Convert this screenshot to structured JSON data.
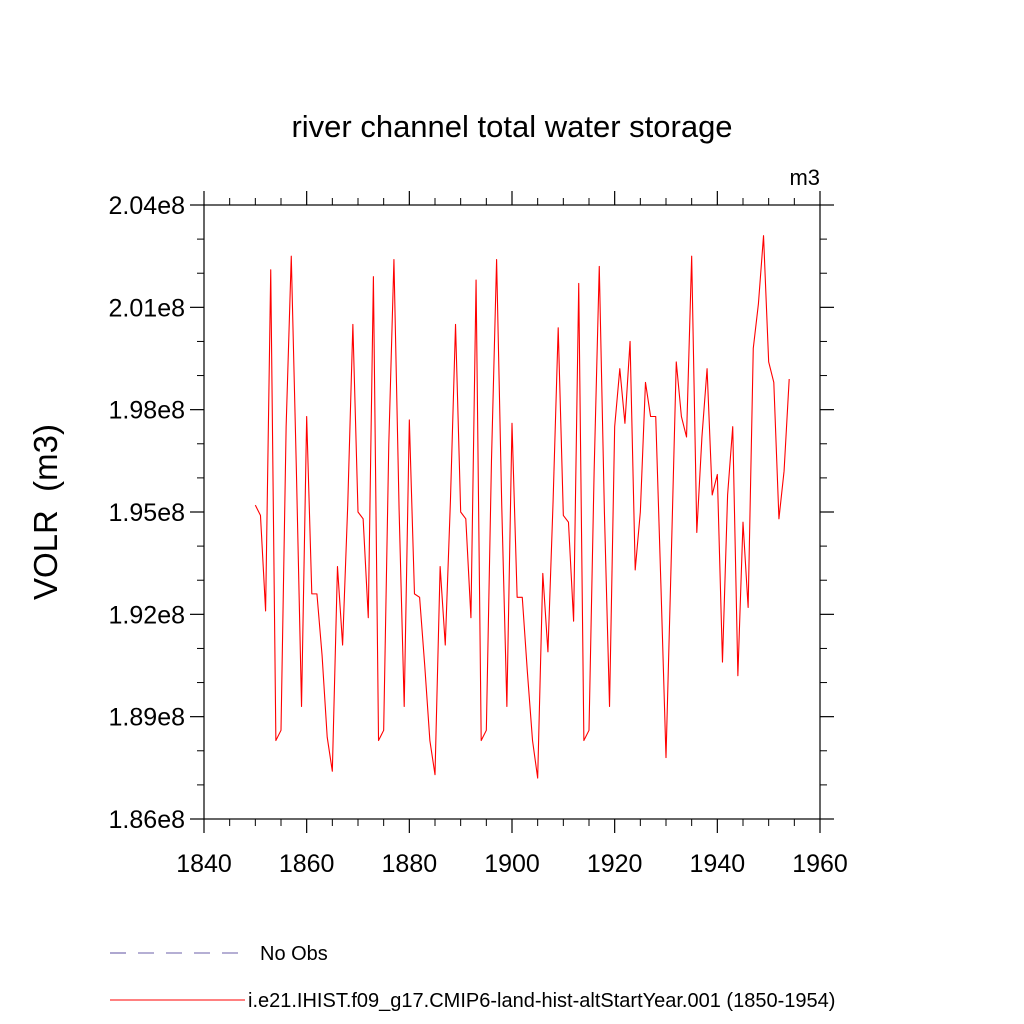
{
  "chart_data": {
    "type": "line",
    "title": "river channel total water storage",
    "units_label": "m3",
    "ylabel": "VOLR  (m3)",
    "xlabel": "",
    "xlim": [
      1840,
      1960
    ],
    "ylim": [
      186000000.0,
      204000000.0
    ],
    "x_ticks": [
      1840,
      1860,
      1880,
      1900,
      1920,
      1940,
      1960
    ],
    "x_tick_labels": [
      "1840",
      "1860",
      "1880",
      "1900",
      "1920",
      "1940",
      "1960"
    ],
    "y_ticks": [
      186000000.0,
      189000000.0,
      192000000.0,
      195000000.0,
      198000000.0,
      201000000.0,
      204000000.0
    ],
    "y_tick_labels": [
      "1.86e8",
      "1.89e8",
      "1.92e8",
      "1.95e8",
      "1.98e8",
      "2.01e8",
      "2.04e8"
    ],
    "grid": false,
    "legend_position": "bottom",
    "series": [
      {
        "name": "i.e21.IHIST.f09_g17.CMIP6-land-hist-altStartYear.001 (1850-1954)",
        "color": "#ff0000",
        "style": "solid",
        "x": [
          1850,
          1851,
          1852,
          1853,
          1854,
          1855,
          1856,
          1857,
          1858,
          1859,
          1860,
          1861,
          1862,
          1863,
          1864,
          1865,
          1866,
          1867,
          1868,
          1869,
          1870,
          1871,
          1872,
          1873,
          1874,
          1875,
          1876,
          1877,
          1878,
          1879,
          1880,
          1881,
          1882,
          1883,
          1884,
          1885,
          1886,
          1887,
          1888,
          1889,
          1890,
          1891,
          1892,
          1893,
          1894,
          1895,
          1896,
          1897,
          1898,
          1899,
          1900,
          1901,
          1902,
          1903,
          1904,
          1905,
          1906,
          1907,
          1908,
          1909,
          1910,
          1911,
          1912,
          1913,
          1914,
          1915,
          1916,
          1917,
          1918,
          1919,
          1920,
          1921,
          1922,
          1923,
          1924,
          1925,
          1926,
          1927,
          1928,
          1929,
          1930,
          1931,
          1932,
          1933,
          1934,
          1935,
          1936,
          1937,
          1938,
          1939,
          1940,
          1941,
          1942,
          1943,
          1944,
          1945,
          1946,
          1947,
          1948,
          1949,
          1950,
          1951,
          1952,
          1953,
          1954
        ],
        "y": [
          195200000.0,
          194900000.0,
          192100000.0,
          202100000.0,
          188300000.0,
          188600000.0,
          197500000.0,
          202500000.0,
          196200000.0,
          189300000.0,
          197800000.0,
          192600000.0,
          192600000.0,
          190800000.0,
          188400000.0,
          187400000.0,
          193400000.0,
          191100000.0,
          195200000.0,
          200500000.0,
          195000000.0,
          194800000.0,
          191900000.0,
          201900000.0,
          188300000.0,
          188600000.0,
          197000000.0,
          202400000.0,
          195100000.0,
          189300000.0,
          197700000.0,
          192600000.0,
          192500000.0,
          190500000.0,
          188300000.0,
          187300000.0,
          193400000.0,
          191100000.0,
          195300000.0,
          200500000.0,
          195000000.0,
          194800000.0,
          191900000.0,
          201800000.0,
          188300000.0,
          188600000.0,
          196500000.0,
          202400000.0,
          195200000.0,
          189300000.0,
          197600000.0,
          192500000.0,
          192500000.0,
          190300000.0,
          188300000.0,
          187200000.0,
          193200000.0,
          190900000.0,
          195300000.0,
          200400000.0,
          194900000.0,
          194700000.0,
          191800000.0,
          201700000.0,
          188300000.0,
          188600000.0,
          196200000.0,
          202200000.0,
          195000000.0,
          189300000.0,
          197500000.0,
          199200000.0,
          197600000.0,
          200000000.0,
          193300000.0,
          195000000.0,
          198800000.0,
          197800000.0,
          197800000.0,
          192900000.0,
          187800000.0,
          193500000.0,
          199400000.0,
          197800000.0,
          197200000.0,
          202500000.0,
          194400000.0,
          197200000.0,
          199200000.0,
          195500000.0,
          196100000.0,
          190600000.0,
          195500000.0,
          197500000.0,
          190200000.0,
          194700000.0,
          192200000.0,
          199800000.0,
          201100000.0,
          203100000.0,
          199400000.0,
          198800000.0,
          194800000.0,
          196200000.0,
          198900000.0
        ]
      }
    ],
    "reference_series": {
      "name": "No Obs",
      "color": "#6b5fa8",
      "style": "dashed"
    }
  }
}
